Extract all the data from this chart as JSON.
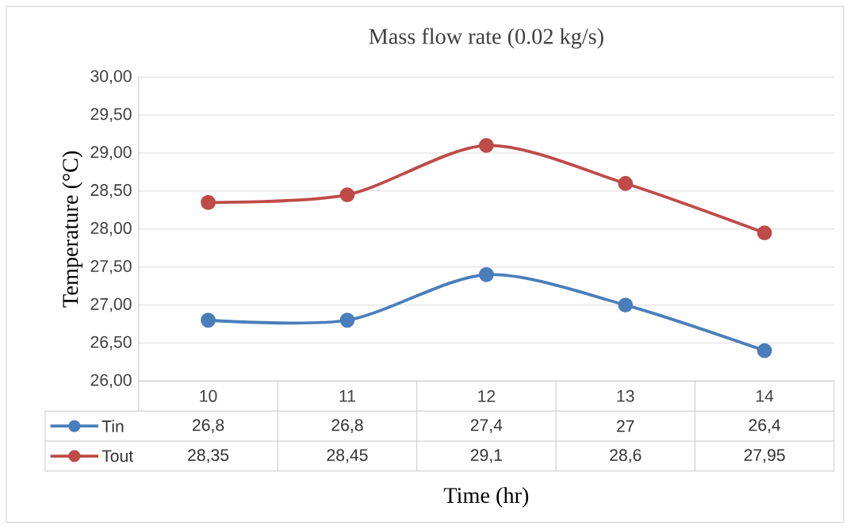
{
  "chart_data": {
    "type": "line",
    "title": "Mass flow rate (0.02 kg/s)",
    "xlabel": "Time (hr)",
    "ylabel": "Temperature (°C)",
    "categories": [
      "10",
      "11",
      "12",
      "13",
      "14"
    ],
    "series": [
      {
        "name": "Tin",
        "color": "#4a7ebb",
        "values": [
          26.8,
          26.8,
          27.4,
          27,
          26.4
        ],
        "value_labels": [
          "26,8",
          "26,8",
          "27,4",
          "27",
          "26,4"
        ]
      },
      {
        "name": "Tout",
        "color": "#be4b48",
        "values": [
          28.35,
          28.45,
          29.1,
          28.6,
          27.95
        ],
        "value_labels": [
          "28,35",
          "28,45",
          "29,1",
          "28,6",
          "27,95"
        ]
      }
    ],
    "ylim": [
      26,
      30
    ],
    "yticks": [
      {
        "value": 26,
        "label": "26,00"
      },
      {
        "value": 26.5,
        "label": "26,50"
      },
      {
        "value": 27,
        "label": "27,00"
      },
      {
        "value": 27.5,
        "label": "27,50"
      },
      {
        "value": 28,
        "label": "28,00"
      },
      {
        "value": 28.5,
        "label": "28,50"
      },
      {
        "value": 29,
        "label": "29,00"
      },
      {
        "value": 29.5,
        "label": "29,50"
      },
      {
        "value": 30,
        "label": "30,00"
      }
    ],
    "grid": "y",
    "legend": "bottom",
    "marker": "circle",
    "line_style": "solid"
  }
}
